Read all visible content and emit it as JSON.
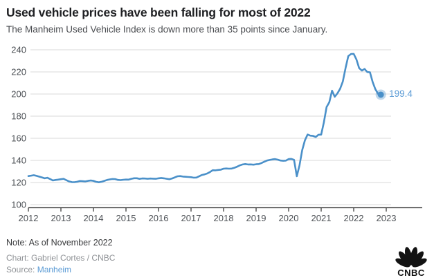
{
  "chart_data": {
    "type": "line",
    "title": "Used vehicle prices have been falling for most of 2022",
    "subtitle": "The Manheim Used Vehicle Index is down more than 35 points since January.",
    "xlabel": "",
    "ylabel": "",
    "ylim": [
      100,
      248
    ],
    "xlim": [
      2012,
      2023.1
    ],
    "grid": "horizontal-only",
    "legend": "none",
    "x_axis": {
      "start": "2012-01",
      "end": "2022-11",
      "frequency": "monthly",
      "tick_labels": [
        "2012",
        "2013",
        "2014",
        "2015",
        "2016",
        "2017",
        "2018",
        "2019",
        "2020",
        "2021",
        "2022",
        "2023"
      ]
    },
    "y_axis": {
      "ticks": [
        100,
        120,
        140,
        160,
        180,
        200,
        220,
        240
      ]
    },
    "series": [
      {
        "name": "Manheim Used Vehicle Index",
        "color": "#4a90c9",
        "values": [
          125.8,
          126.2,
          126.6,
          126.0,
          125.3,
          124.6,
          123.8,
          124.3,
          123.2,
          121.9,
          122.3,
          122.6,
          123.0,
          123.4,
          122.1,
          121.0,
          120.4,
          120.3,
          120.7,
          121.4,
          121.2,
          121.0,
          121.5,
          121.8,
          121.5,
          120.6,
          120.2,
          120.7,
          121.5,
          122.3,
          122.8,
          123.2,
          123.1,
          122.4,
          122.2,
          122.5,
          122.7,
          122.6,
          123.4,
          123.9,
          123.9,
          123.3,
          123.7,
          123.6,
          123.4,
          123.6,
          123.5,
          123.4,
          123.8,
          124.1,
          123.8,
          123.4,
          123.0,
          123.7,
          124.6,
          125.6,
          125.8,
          125.4,
          125.2,
          125.0,
          124.8,
          124.4,
          124.5,
          125.7,
          126.8,
          127.4,
          128.2,
          129.5,
          131.1,
          131.0,
          131.4,
          131.6,
          132.5,
          132.7,
          132.5,
          132.6,
          133.4,
          134.3,
          135.5,
          136.3,
          136.7,
          136.3,
          136.4,
          136.1,
          136.5,
          136.7,
          137.6,
          138.8,
          139.9,
          140.4,
          140.9,
          141.2,
          140.6,
          139.9,
          139.6,
          139.8,
          141.2,
          141.4,
          140.5,
          125.7,
          135.5,
          149.3,
          158.1,
          163.4,
          162.4,
          162.1,
          161.2,
          163.2,
          163.3,
          174.4,
          188.2,
          192.7,
          203.0,
          197.5,
          200.6,
          204.8,
          211.4,
          223.7,
          234.3,
          236.2,
          236.3,
          231.3,
          223.5,
          221.2,
          222.7,
          219.9,
          219.6,
          210.8,
          204.3,
          200.1,
          199.4
        ]
      }
    ],
    "annotation": {
      "text": "199.4",
      "value": 199.4,
      "at": "2022-11"
    }
  },
  "footer": {
    "note": "Note: As of November 2022",
    "credit": "Chart: Gabriel Cortes / CNBC",
    "source_label": "Source: ",
    "source_link": "Manheim"
  },
  "logo": {
    "brand": "CNBC",
    "wordmark": "CNBC"
  }
}
